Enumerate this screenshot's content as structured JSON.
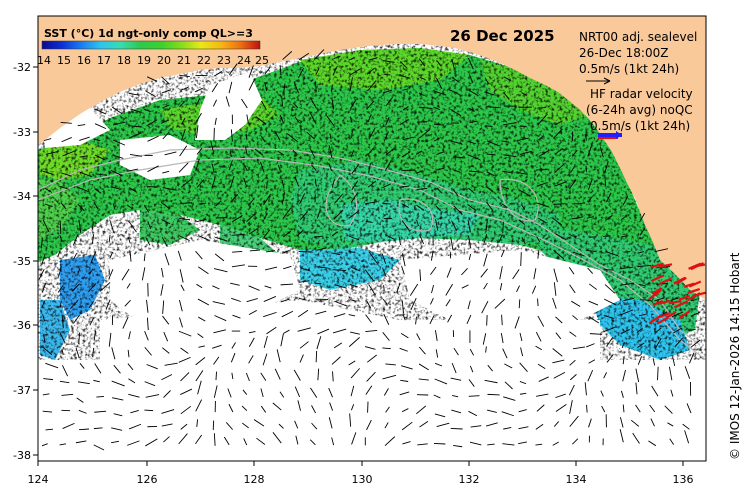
{
  "map": {
    "date": "26 Dec 2025",
    "lon_ticks": [
      "124",
      "126",
      "128",
      "130",
      "132",
      "134",
      "136"
    ],
    "lat_ticks": [
      "-32",
      "-33",
      "-34",
      "-35",
      "-36",
      "-37",
      "-38"
    ],
    "lon_range": [
      124,
      136.7
    ],
    "lat_range": [
      -31.4,
      -38.1
    ]
  },
  "legend": {
    "title": "SST (°C) 1d ngt-only comp QL>=3",
    "labels": [
      "14",
      "15",
      "16",
      "17",
      "18",
      "19",
      "20",
      "21",
      "22",
      "23",
      "24",
      "25"
    ],
    "colors": [
      "#0a0a8c",
      "#0d2fd6",
      "#1c7cf0",
      "#2ec4ee",
      "#38dcb0",
      "#2ec850",
      "#3cd22c",
      "#86dc1e",
      "#e8e81a",
      "#f5b814",
      "#ee7010",
      "#c01010"
    ]
  },
  "currents": {
    "nrt_label": "NRT00 adj. sealevel",
    "nrt_time": "26-Dec 18:00Z",
    "nrt_scale": "0.5m/s (1kt 24h)",
    "hf_label": "HF radar velocity",
    "hf_avg": "(6-24h avg) noQC",
    "hf_scale": "0.5m/s (1kt 24h)"
  },
  "credit": "© IMOS 12-Jan-2026 14:15 Hobart",
  "colors": {
    "land": "#fac99a",
    "hf_vector": "#e01010",
    "nrt_vector": "#000000",
    "hf_legend_arrow": "#2020ff"
  }
}
